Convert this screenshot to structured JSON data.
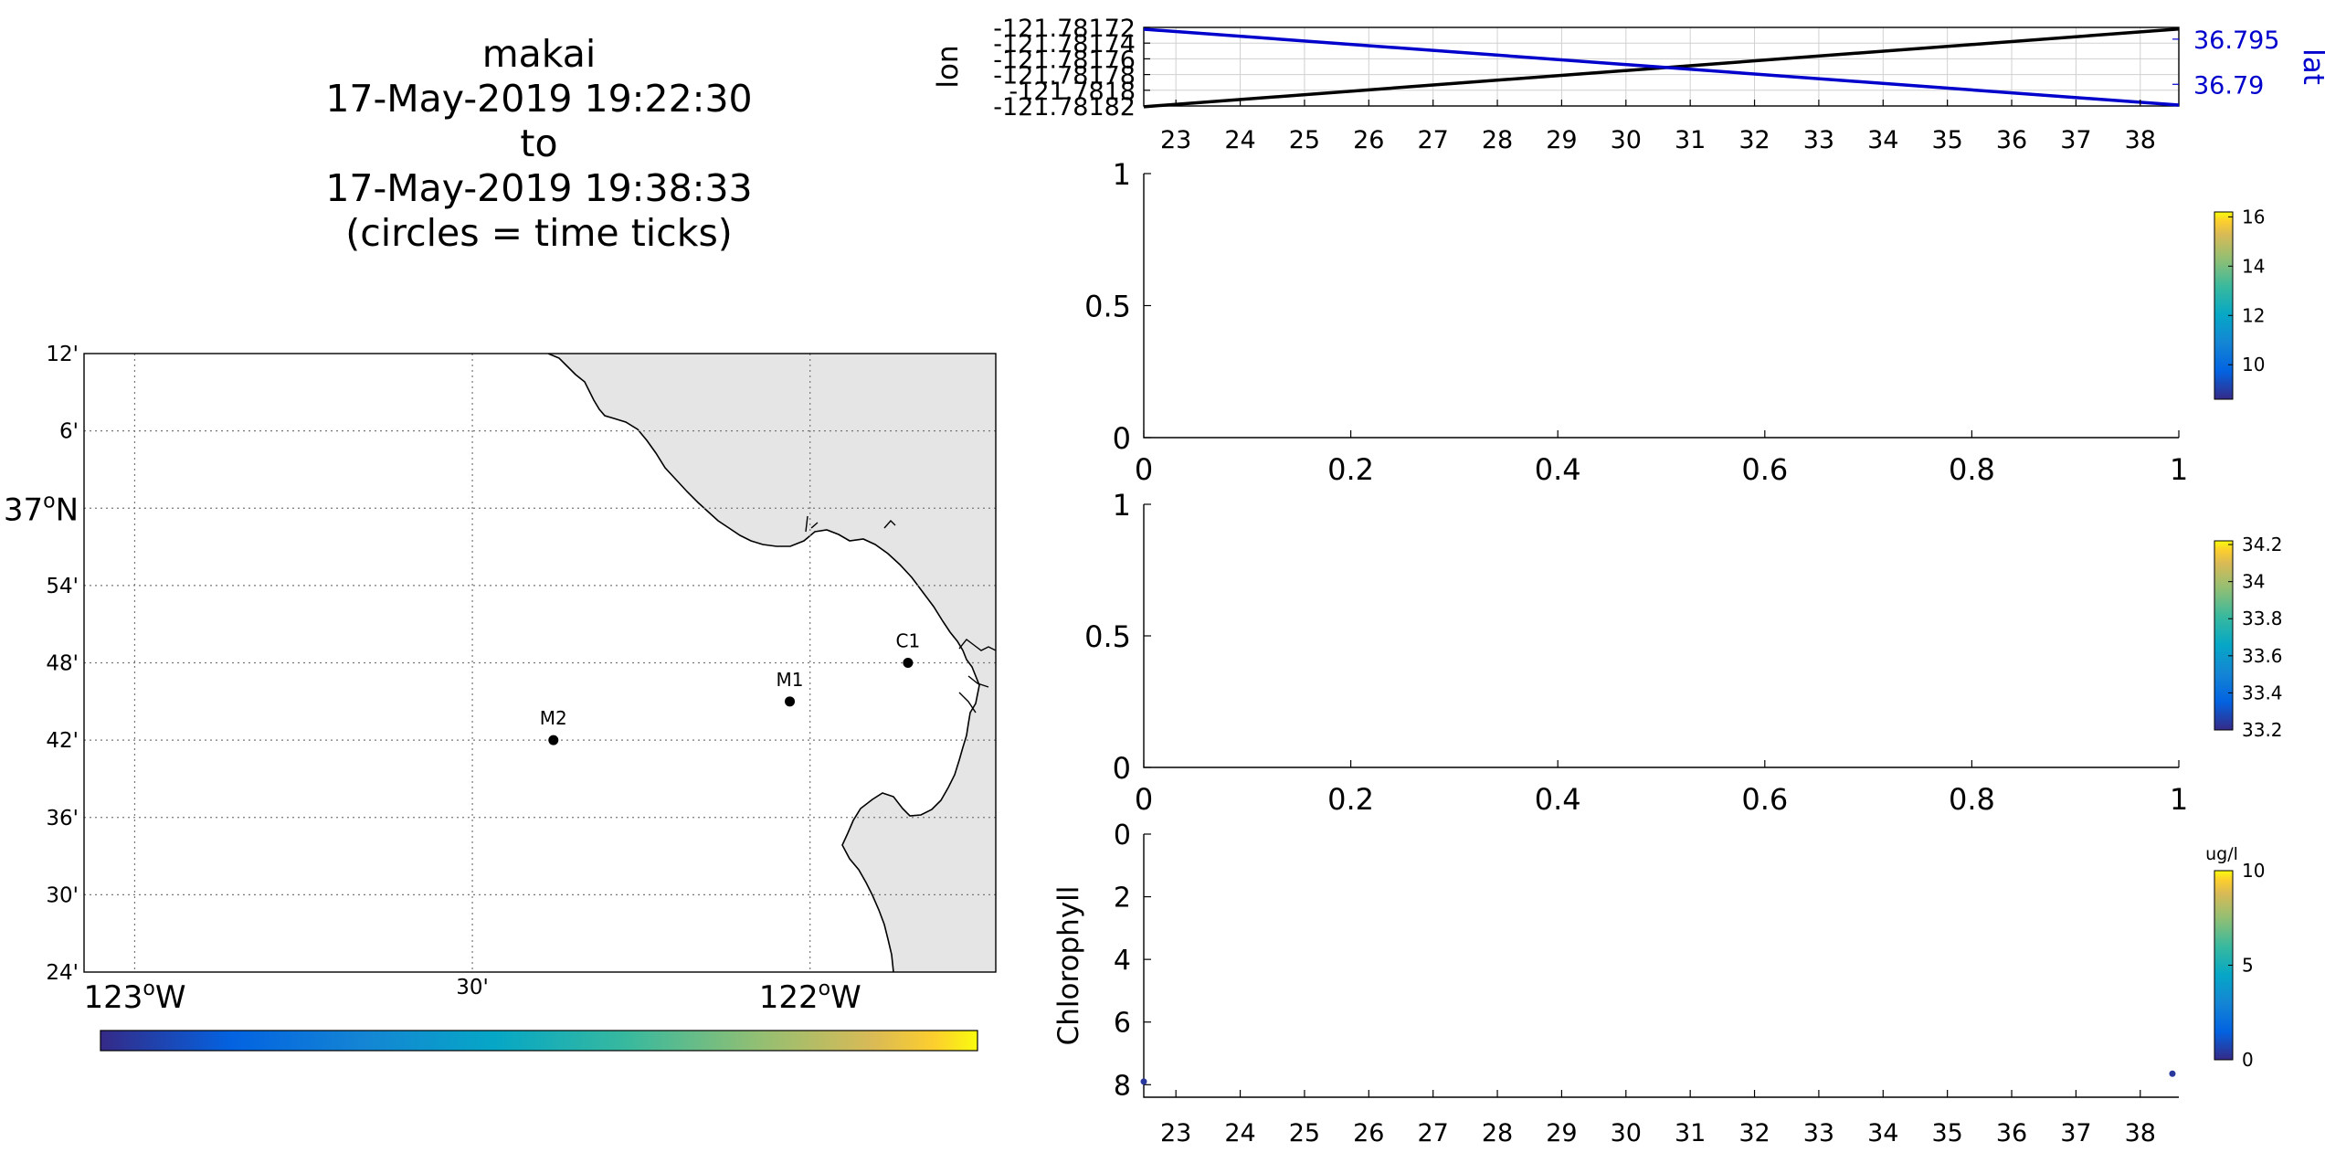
{
  "title": {
    "vehicle": "makai",
    "start": "17-May-2019 19:22:30",
    "to": "to",
    "end": "17-May-2019 19:38:33",
    "note": "(circles = time ticks)"
  },
  "map": {
    "lat_labels": [
      "12'",
      "6'",
      "37°N",
      "54'",
      "48'",
      "42'",
      "36'",
      "30'",
      "24'"
    ],
    "lon_labels": [
      "123°W",
      "30'",
      "122°W"
    ],
    "colors": {
      "land": "#e5e5e5",
      "ocean": "#ffffff",
      "coast": "#000000"
    },
    "stations": [
      {
        "name": "M2",
        "lon": -122.38,
        "lat": 36.7
      },
      {
        "name": "M1",
        "lon": -122.03,
        "lat": 36.75
      },
      {
        "name": "C1",
        "lon": -121.855,
        "lat": 36.8
      }
    ],
    "colorbar": {
      "colormap": "parula"
    }
  },
  "chart_data": [
    {
      "type": "line",
      "panel": "position",
      "ylabel": "lon",
      "y2label": "lat",
      "x_ticks": [
        "23",
        "24",
        "25",
        "26",
        "27",
        "28",
        "29",
        "30",
        "31",
        "32",
        "33",
        "34",
        "35",
        "36",
        "37",
        "38"
      ],
      "xlim": [
        22.5,
        38.6
      ],
      "y_ticks": [
        "-121.78172",
        "-121.78174",
        "-121.78176",
        "-121.78178",
        "-121.7818",
        "-121.78182"
      ],
      "ylim": [
        -121.78182,
        -121.78172
      ],
      "y2_ticks": [
        "36.795",
        "36.79"
      ],
      "y2lim": [
        36.7876,
        36.7963
      ],
      "series": [
        {
          "axis": "left",
          "color": "#000000",
          "x": [
            22.5,
            38.6
          ],
          "y": [
            -121.781821,
            -121.781722
          ]
        },
        {
          "axis": "right",
          "color": "#0000cc",
          "x": [
            22.5,
            38.6
          ],
          "y": [
            36.7961,
            36.7877
          ]
        }
      ],
      "grid": true
    },
    {
      "type": "scatter",
      "panel": "temperature",
      "x_ticks": [
        "0",
        "0.2",
        "0.4",
        "0.6",
        "0.8",
        "1"
      ],
      "y_ticks": [
        "0",
        "0.5",
        "1"
      ],
      "xlim": [
        0,
        1
      ],
      "ylim": [
        0,
        1
      ],
      "series": [],
      "colorbar": {
        "ticks": [
          "10",
          "12",
          "14",
          "16"
        ],
        "range": [
          8.6,
          16.2
        ],
        "label": ""
      }
    },
    {
      "type": "scatter",
      "panel": "salinity",
      "x_ticks": [
        "0",
        "0.2",
        "0.4",
        "0.6",
        "0.8",
        "1"
      ],
      "y_ticks": [
        "0",
        "0.5",
        "1"
      ],
      "xlim": [
        0,
        1
      ],
      "ylim": [
        0,
        1
      ],
      "series": [],
      "colorbar": {
        "ticks": [
          "33.2",
          "33.4",
          "33.6",
          "33.8",
          "34",
          "34.2"
        ],
        "range": [
          33.2,
          34.22
        ],
        "label": ""
      }
    },
    {
      "type": "scatter",
      "panel": "chlorophyll",
      "ylabel": "Chlorophyll",
      "x_ticks": [
        "23",
        "24",
        "25",
        "26",
        "27",
        "28",
        "29",
        "30",
        "31",
        "32",
        "33",
        "34",
        "35",
        "36",
        "37",
        "38"
      ],
      "xlim": [
        22.5,
        38.6
      ],
      "y_ticks": [
        "0",
        "2",
        "4",
        "6",
        "8"
      ],
      "ylim": [
        0,
        8.4
      ],
      "y_reversed": true,
      "points": [
        {
          "x": 22.5,
          "y": 7.9,
          "value": 0.3
        },
        {
          "x": 38.5,
          "y": 7.65,
          "value": 0.3
        }
      ],
      "colorbar": {
        "ticks": [
          "0",
          "5",
          "10"
        ],
        "range": [
          0,
          10
        ],
        "label": "ug/l"
      }
    }
  ]
}
